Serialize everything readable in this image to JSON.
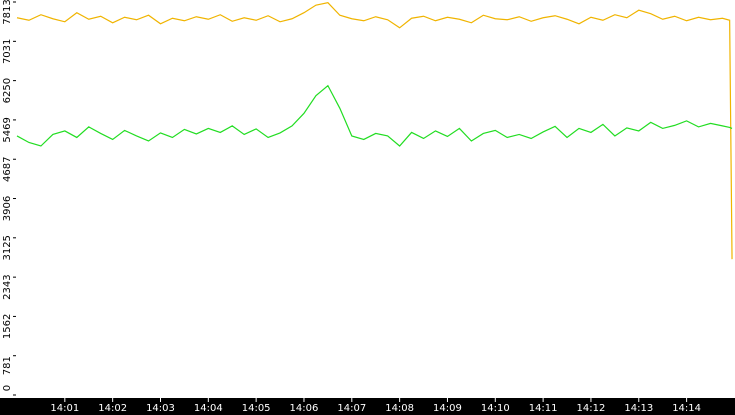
{
  "chart_data": {
    "type": "line",
    "x": [
      0,
      0.25,
      0.5,
      0.75,
      1,
      1.25,
      1.5,
      1.75,
      2,
      2.25,
      2.5,
      2.75,
      3,
      3.25,
      3.5,
      3.75,
      4,
      4.25,
      4.5,
      4.75,
      5,
      5.25,
      5.5,
      5.75,
      6,
      6.25,
      6.5,
      6.75,
      7,
      7.25,
      7.5,
      7.75,
      8,
      8.25,
      8.5,
      8.75,
      9,
      9.25,
      9.5,
      9.75,
      10,
      10.25,
      10.5,
      10.75,
      11,
      11.25,
      11.5,
      11.75,
      12,
      12.25,
      12.5,
      12.75,
      13,
      13.25,
      13.5,
      13.75,
      14,
      14.25,
      14.5,
      14.75,
      14.9,
      14.95
    ],
    "series": [
      {
        "color": "#f0b400",
        "values": [
          7500,
          7450,
          7560,
          7480,
          7420,
          7600,
          7470,
          7530,
          7400,
          7510,
          7460,
          7550,
          7380,
          7490,
          7440,
          7520,
          7470,
          7560,
          7430,
          7500,
          7450,
          7540,
          7420,
          7480,
          7600,
          7750,
          7800,
          7550,
          7480,
          7440,
          7520,
          7460,
          7300,
          7490,
          7530,
          7440,
          7510,
          7470,
          7400,
          7550,
          7480,
          7460,
          7520,
          7430,
          7500,
          7540,
          7470,
          7380,
          7510,
          7450,
          7560,
          7500,
          7650,
          7580,
          7470,
          7530,
          7440,
          7510,
          7460,
          7490,
          7450,
          2700
        ]
      },
      {
        "color": "#22dd22",
        "values": [
          5150,
          5020,
          4950,
          5180,
          5250,
          5120,
          5330,
          5200,
          5080,
          5260,
          5150,
          5050,
          5210,
          5120,
          5280,
          5190,
          5300,
          5220,
          5350,
          5180,
          5290,
          5120,
          5210,
          5350,
          5600,
          5950,
          6150,
          5700,
          5150,
          5080,
          5200,
          5150,
          4950,
          5220,
          5100,
          5250,
          5140,
          5300,
          5050,
          5200,
          5260,
          5120,
          5180,
          5100,
          5230,
          5340,
          5120,
          5300,
          5220,
          5380,
          5150,
          5310,
          5250,
          5420,
          5300,
          5360,
          5450,
          5330,
          5400,
          5350,
          5320,
          5300
        ]
      }
    ],
    "xlim": [
      0,
      14.97
    ],
    "xticks": [
      {
        "value": 1,
        "label": "14:01"
      },
      {
        "value": 2,
        "label": "14:02"
      },
      {
        "value": 3,
        "label": "14:03"
      },
      {
        "value": 4,
        "label": "14:04"
      },
      {
        "value": 5,
        "label": "14:05"
      },
      {
        "value": 6,
        "label": "14:06"
      },
      {
        "value": 7,
        "label": "14:07"
      },
      {
        "value": 8,
        "label": "14:08"
      },
      {
        "value": 9,
        "label": "14:09"
      },
      {
        "value": 10,
        "label": "14:10"
      },
      {
        "value": 11,
        "label": "14:11"
      },
      {
        "value": 12,
        "label": "14:12"
      },
      {
        "value": 13,
        "label": "14:13"
      },
      {
        "value": 14,
        "label": "14:14"
      }
    ],
    "ylim": [
      0,
      7813
    ],
    "yticks": [
      0,
      781,
      1562,
      2343,
      3125,
      3906,
      4687,
      5469,
      6250,
      7031,
      7813
    ]
  }
}
